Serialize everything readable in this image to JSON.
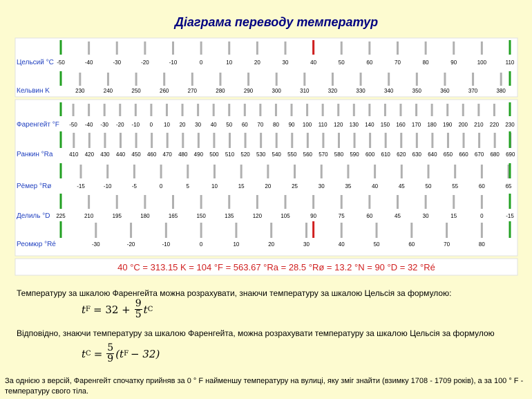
{
  "title": "Діаграма переводу температур",
  "scales": [
    {
      "label": "Цельсий °C",
      "ticks": [
        "-50",
        "-40",
        "-30",
        "-20",
        "-10",
        "0",
        "10",
        "20",
        "30",
        "40",
        "50",
        "60",
        "70",
        "80",
        "90",
        "100",
        "110"
      ],
      "labelColor": "#1f3fbf"
    },
    {
      "label": "Кельвин K",
      "ticks": [
        "230",
        "240",
        "250",
        "260",
        "270",
        "280",
        "290",
        "300",
        "310",
        "320",
        "330",
        "340",
        "350",
        "360",
        "370",
        "380"
      ],
      "labelColor": "#1f3fbf"
    },
    {
      "label": "Фаренгейт °F",
      "ticks": [
        "-50",
        "-40",
        "-30",
        "-20",
        "-10",
        "0",
        "10",
        "20",
        "30",
        "40",
        "50",
        "60",
        "70",
        "80",
        "90",
        "100",
        "110",
        "120",
        "130",
        "140",
        "150",
        "160",
        "170",
        "180",
        "190",
        "200",
        "210",
        "220",
        "230"
      ],
      "labelColor": "#1f3fbf"
    },
    {
      "label": "Ранкин °Ra",
      "ticks": [
        "410",
        "420",
        "430",
        "440",
        "450",
        "460",
        "470",
        "480",
        "490",
        "500",
        "510",
        "520",
        "530",
        "540",
        "550",
        "560",
        "570",
        "580",
        "590",
        "600",
        "610",
        "620",
        "630",
        "640",
        "650",
        "660",
        "670",
        "680",
        "690"
      ],
      "labelColor": "#1f3fbf"
    },
    {
      "label": "Рёмер °Rø",
      "ticks": [
        "-15",
        "-10",
        "-5",
        "0",
        "5",
        "10",
        "15",
        "20",
        "25",
        "30",
        "35",
        "40",
        "45",
        "50",
        "55",
        "60",
        "65"
      ],
      "labelColor": "#1f3fbf"
    },
    {
      "label": "Делиль °D",
      "ticks": [
        "225",
        "210",
        "195",
        "180",
        "165",
        "150",
        "135",
        "120",
        "105",
        "90",
        "75",
        "60",
        "45",
        "30",
        "15",
        "0",
        "-15"
      ],
      "labelColor": "#1f3fbf"
    },
    {
      "label": "Реомюр °Ré",
      "ticks": [
        "-30",
        "-20",
        "-10",
        "0",
        "10",
        "20",
        "30",
        "40",
        "50",
        "60",
        "70",
        "80"
      ],
      "labelColor": "#1f3fbf"
    }
  ],
  "equivalence": [
    "40 °C",
    "=",
    "313.15 K",
    "=",
    "104 °F",
    "=",
    "563.67 °Ra",
    "=",
    "28.5 °Rø",
    "=",
    "13.2 °N",
    "=",
    "90 °D",
    "=",
    "32 °Ré"
  ],
  "colors": {
    "marker": "#d02020",
    "accent": "#22a022",
    "tickGray": "#b0b0b0",
    "equivalence": "#d02020",
    "title": "#000080"
  },
  "text": {
    "p1": "Температуру за шкалою Фаренгейта можна розрахувати, знаючи температуру за шкалою Цельсія за формулою:",
    "p2": "Відповідно, знаючи температуру за шкалою Фаренгейта, можна розрахувати температуру за шкалою Цельсія за формулою",
    "p3": "За однією з версій, Фаренгейт спочатку прийняв за 0 ° F найменшу температуру на вулиці, яку зміг знайти (взимку 1708 - 1709 років), а за 100 ° F - температуру свого тіла."
  },
  "formula1": {
    "lhs": "t",
    "lhsSub": "F",
    "eq": "= 32 +",
    "num": "9",
    "den": "5",
    "rhs": "t",
    "rhsSub": "C"
  },
  "formula2": {
    "lhs": "t",
    "lhsSub": "C",
    "eq": "=",
    "num": "5",
    "den": "9",
    "rhs": "(t",
    "rhsSub": "F",
    "tail": "− 32)"
  }
}
